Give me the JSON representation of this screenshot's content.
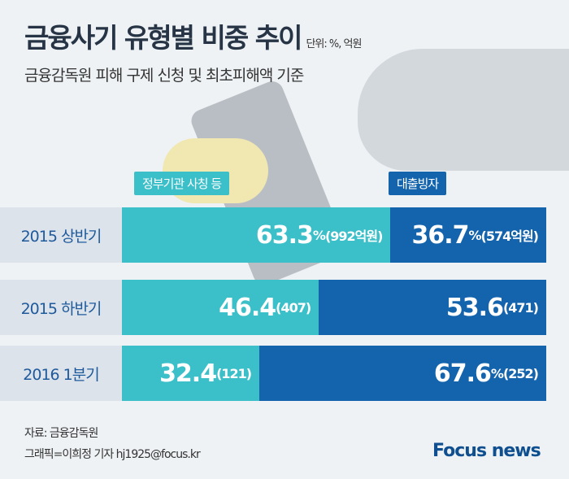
{
  "title": "금융사기 유형별 비중 추이",
  "unit": "단위: %, 억원",
  "subtitle": "금융감독원 피해 구제 신청 및 최초피해액 기준",
  "source": "자료: 금융감독원",
  "credit": "그래픽=이희정 기자 hj1925@focus.kr",
  "logo": "Focus news",
  "colors": {
    "teal": "#3bbfc8",
    "blue": "#1464ad"
  },
  "chart_data": {
    "type": "bar",
    "orientation": "horizontal-stacked-100",
    "categories": [
      "2015 상반기",
      "2015 하반기",
      "2016 1분기"
    ],
    "series": [
      {
        "name": "정부기관 사칭 등",
        "values": [
          63.3,
          46.4,
          32.4
        ],
        "amounts": [
          992,
          407,
          121
        ],
        "labels": [
          {
            "v": "63.3",
            "pct": "%",
            "amt": "(992억원)"
          },
          {
            "v": "46.4",
            "pct": "",
            "amt": "(407)"
          },
          {
            "v": "32.4",
            "pct": "",
            "amt": "(121)"
          }
        ]
      },
      {
        "name": "대출빙자",
        "values": [
          36.7,
          53.6,
          67.6
        ],
        "amounts": [
          574,
          471,
          252
        ],
        "labels": [
          {
            "v": "36.7",
            "pct": "%",
            "amt": "(574억원)"
          },
          {
            "v": "53.6",
            "pct": "",
            "amt": "(471)"
          },
          {
            "v": "67.6",
            "pct": "%",
            "amt": "(252)"
          }
        ]
      }
    ],
    "xlim": [
      0,
      100
    ]
  }
}
